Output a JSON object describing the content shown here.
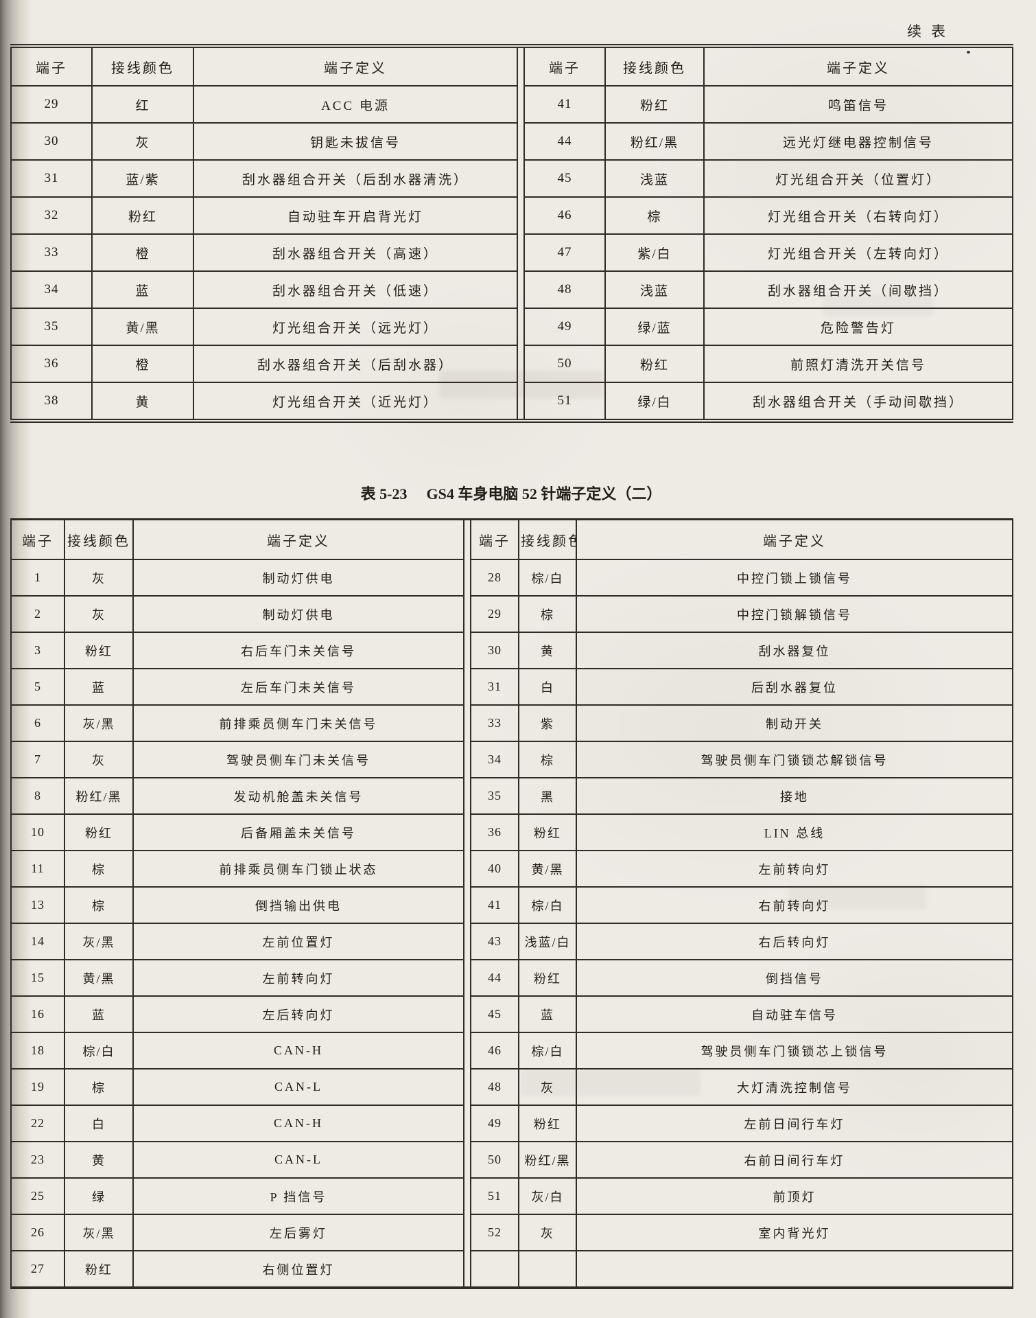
{
  "page": {
    "continuation_label": "续表"
  },
  "table_top": {
    "headers": {
      "terminal": "端子",
      "color": "接线颜色",
      "definition": "端子定义"
    },
    "left_rows": [
      [
        "29",
        "红",
        "ACC 电源"
      ],
      [
        "30",
        "灰",
        "钥匙未拔信号"
      ],
      [
        "31",
        "蓝/紫",
        "刮水器组合开关（后刮水器清洗）"
      ],
      [
        "32",
        "粉红",
        "自动驻车开启背光灯"
      ],
      [
        "33",
        "橙",
        "刮水器组合开关（高速）"
      ],
      [
        "34",
        "蓝",
        "刮水器组合开关（低速）"
      ],
      [
        "35",
        "黄/黑",
        "灯光组合开关（远光灯）"
      ],
      [
        "36",
        "橙",
        "刮水器组合开关（后刮水器）"
      ],
      [
        "38",
        "黄",
        "灯光组合开关（近光灯）"
      ]
    ],
    "right_rows": [
      [
        "41",
        "粉红",
        "鸣笛信号"
      ],
      [
        "44",
        "粉红/黑",
        "远光灯继电器控制信号"
      ],
      [
        "45",
        "浅蓝",
        "灯光组合开关（位置灯）"
      ],
      [
        "46",
        "棕",
        "灯光组合开关（右转向灯）"
      ],
      [
        "47",
        "紫/白",
        "灯光组合开关（左转向灯）"
      ],
      [
        "48",
        "浅蓝",
        "刮水器组合开关（间歇挡）"
      ],
      [
        "49",
        "绿/蓝",
        "危险警告灯"
      ],
      [
        "50",
        "粉红",
        "前照灯清洗开关信号"
      ],
      [
        "51",
        "绿/白",
        "刮水器组合开关（手动间歇挡）"
      ]
    ]
  },
  "table_main": {
    "title_label": "表 5-23",
    "title_text": "GS4 车身电脑 52 针端子定义（二）",
    "headers": {
      "terminal": "端子",
      "color": "接线颜色",
      "definition": "端子定义"
    },
    "left_rows": [
      [
        "1",
        "灰",
        "制动灯供电"
      ],
      [
        "2",
        "灰",
        "制动灯供电"
      ],
      [
        "3",
        "粉红",
        "右后车门未关信号"
      ],
      [
        "5",
        "蓝",
        "左后车门未关信号"
      ],
      [
        "6",
        "灰/黑",
        "前排乘员侧车门未关信号"
      ],
      [
        "7",
        "灰",
        "驾驶员侧车门未关信号"
      ],
      [
        "8",
        "粉红/黑",
        "发动机舱盖未关信号"
      ],
      [
        "10",
        "粉红",
        "后备厢盖未关信号"
      ],
      [
        "11",
        "棕",
        "前排乘员侧车门锁止状态"
      ],
      [
        "13",
        "棕",
        "倒挡输出供电"
      ],
      [
        "14",
        "灰/黑",
        "左前位置灯"
      ],
      [
        "15",
        "黄/黑",
        "左前转向灯"
      ],
      [
        "16",
        "蓝",
        "左后转向灯"
      ],
      [
        "18",
        "棕/白",
        "CAN-H"
      ],
      [
        "19",
        "棕",
        "CAN-L"
      ],
      [
        "22",
        "白",
        "CAN-H"
      ],
      [
        "23",
        "黄",
        "CAN-L"
      ],
      [
        "25",
        "绿",
        "P 挡信号"
      ],
      [
        "26",
        "灰/黑",
        "左后雾灯"
      ],
      [
        "27",
        "粉红",
        "右侧位置灯"
      ]
    ],
    "right_rows": [
      [
        "28",
        "棕/白",
        "中控门锁上锁信号"
      ],
      [
        "29",
        "棕",
        "中控门锁解锁信号"
      ],
      [
        "30",
        "黄",
        "刮水器复位"
      ],
      [
        "31",
        "白",
        "后刮水器复位"
      ],
      [
        "33",
        "紫",
        "制动开关"
      ],
      [
        "34",
        "棕",
        "驾驶员侧车门锁锁芯解锁信号"
      ],
      [
        "35",
        "黑",
        "接地"
      ],
      [
        "36",
        "粉红",
        "LIN 总线"
      ],
      [
        "40",
        "黄/黑",
        "左前转向灯"
      ],
      [
        "41",
        "棕/白",
        "右前转向灯"
      ],
      [
        "43",
        "浅蓝/白",
        "右后转向灯"
      ],
      [
        "44",
        "粉红",
        "倒挡信号"
      ],
      [
        "45",
        "蓝",
        "自动驻车信号"
      ],
      [
        "46",
        "棕/白",
        "驾驶员侧车门锁锁芯上锁信号"
      ],
      [
        "48",
        "灰",
        "大灯清洗控制信号"
      ],
      [
        "49",
        "粉红",
        "左前日间行车灯"
      ],
      [
        "50",
        "粉红/黑",
        "右前日间行车灯"
      ],
      [
        "51",
        "灰/白",
        "前顶灯"
      ],
      [
        "52",
        "灰",
        "室内背光灯"
      ],
      [
        "",
        "",
        ""
      ]
    ]
  }
}
